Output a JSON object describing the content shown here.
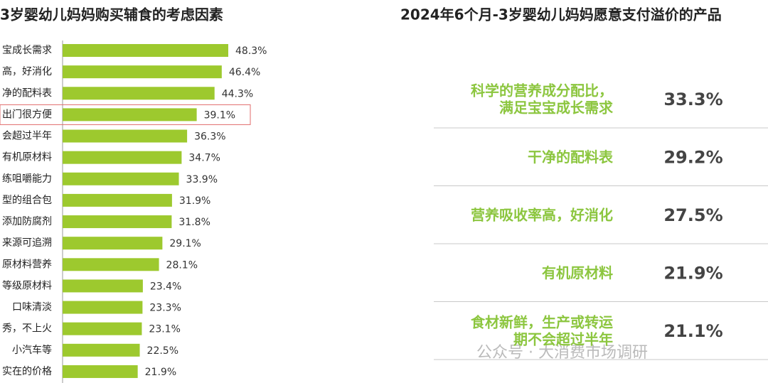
{
  "chart_data": [
    {
      "type": "hbar",
      "title": "3岁婴幼儿妈妈购买辅食的考虑因素",
      "categories": [
        "宝成长需求",
        "高，好消化",
        "净的配料表",
        "出门很方便",
        "会超过半年",
        "有机原材料",
        "练咀嚼能力",
        "型的组合包",
        "添加防腐剂",
        "来源可追溯",
        "原材料营养",
        "等级原材料",
        "口味清淡",
        "秀，不上火",
        "小汽车等",
        "实在的价格"
      ],
      "values": [
        48.3,
        46.4,
        44.3,
        39.1,
        36.3,
        34.7,
        33.9,
        31.9,
        31.8,
        29.1,
        28.1,
        23.4,
        23.3,
        23.1,
        22.5,
        21.9
      ],
      "value_labels": [
        "48.3%",
        "46.4%",
        "44.3%",
        "39.1%",
        "36.3%",
        "34.7%",
        "33.9%",
        "31.9%",
        "31.8%",
        "29.1%",
        "28.1%",
        "23.4%",
        "23.3%",
        "23.1%",
        "22.5%",
        "21.9%"
      ],
      "color": "#9dc92e",
      "highlight": 3,
      "highlight_color": "#e06b6b"
    },
    {
      "type": "ranked_list",
      "title": "2024年6个月-3岁婴幼儿妈妈愿意支付溢价的产品",
      "categories": [
        [
          "科学的营养成分配比，",
          "满足宝宝成长需求"
        ],
        [
          "干净的配料表"
        ],
        [
          "营养吸收率高，好消化"
        ],
        [
          "有机原材料"
        ],
        [
          "食材新鲜，生产或转运",
          "期不会超过半年"
        ]
      ],
      "values": [
        33.3,
        29.2,
        27.5,
        21.9,
        21.1
      ],
      "value_labels": [
        "33.3%",
        "29.2%",
        "27.5%",
        "21.9%",
        "21.1%"
      ],
      "color": "#8cc63f"
    }
  ],
  "watermark": "公众号 · 大消费市场调研"
}
